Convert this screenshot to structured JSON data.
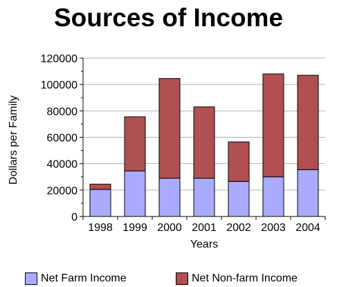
{
  "chart_data": {
    "type": "bar",
    "stacked": true,
    "title": "Sources of Income",
    "xlabel": "Years",
    "ylabel": "Dollars per Family",
    "ylim": [
      0,
      120000
    ],
    "yticks": [
      "0",
      "20000",
      "40000",
      "60000",
      "80000",
      "100000",
      "120000"
    ],
    "categories": [
      "1998",
      "1999",
      "2000",
      "2001",
      "2002",
      "2003",
      "2004"
    ],
    "series": [
      {
        "name": "Net Farm Income",
        "color": "#aaaaff",
        "values": [
          20500,
          34500,
          29000,
          29000,
          26500,
          30000,
          35500
        ]
      },
      {
        "name": "Net Non-farm Income",
        "color": "#b05050",
        "values": [
          4000,
          41000,
          75500,
          54000,
          30000,
          78000,
          71500
        ]
      }
    ],
    "grid": true,
    "legend": "bottom"
  }
}
